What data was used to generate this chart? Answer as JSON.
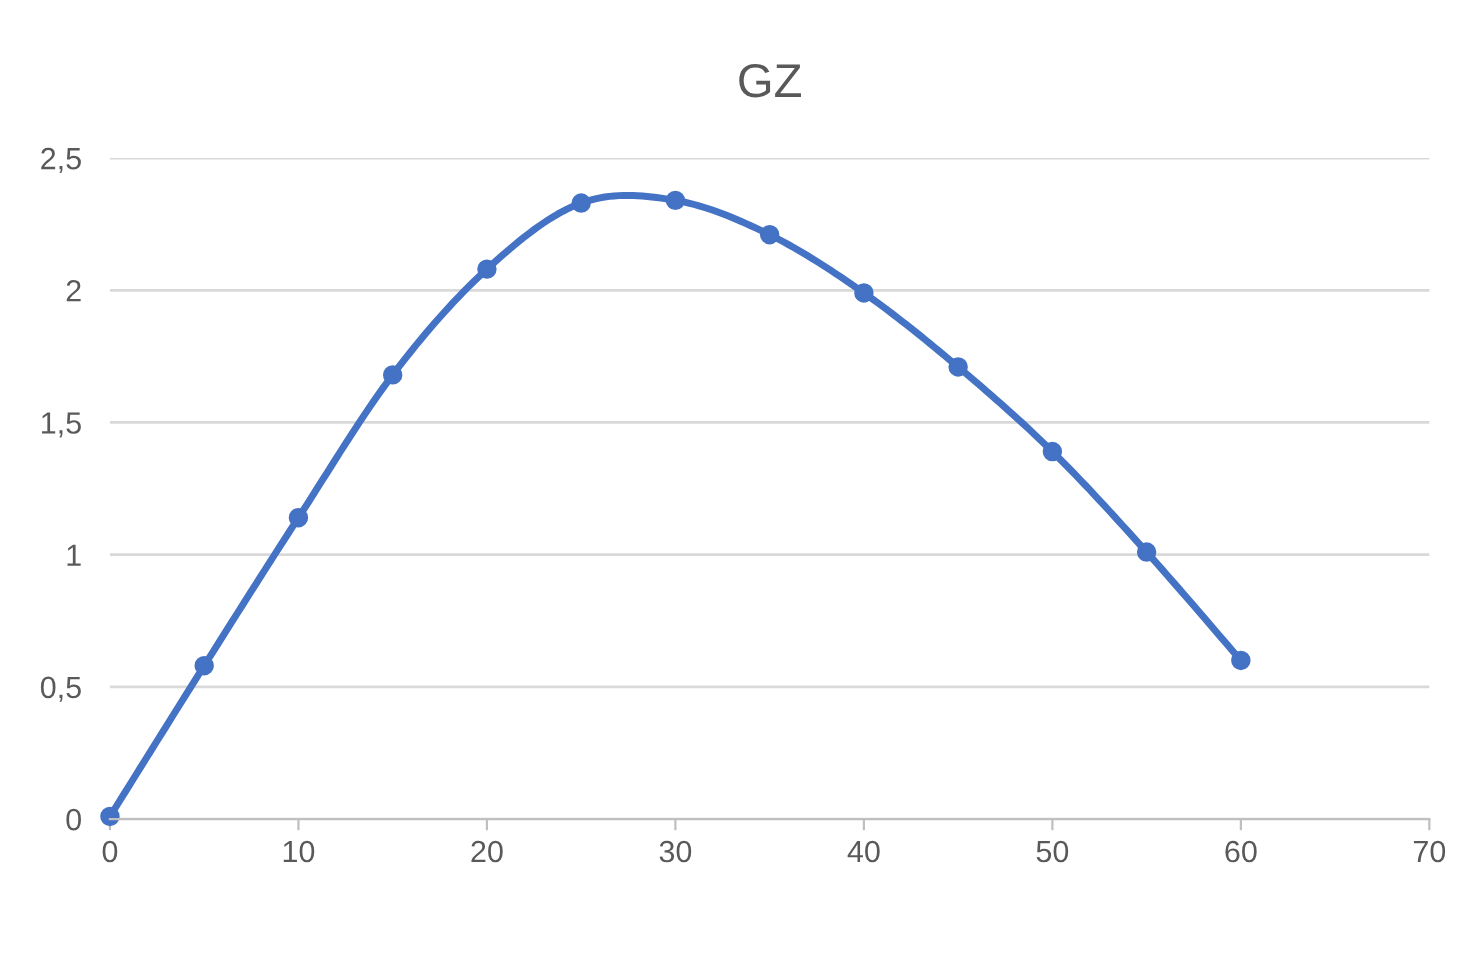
{
  "chart_data": {
    "type": "line",
    "title": "GZ",
    "x": [
      0,
      5,
      10,
      15,
      20,
      25,
      30,
      35,
      40,
      45,
      50,
      55,
      60
    ],
    "series": [
      {
        "color": "#4472c4",
        "values": [
          0.01,
          0.58,
          1.14,
          1.68,
          2.08,
          2.33,
          2.34,
          2.21,
          1.99,
          1.71,
          1.39,
          1.01,
          0.6
        ]
      }
    ],
    "xlim": [
      0,
      70
    ],
    "xticks": [
      0,
      10,
      20,
      30,
      40,
      50,
      60,
      70
    ],
    "ylim": [
      0,
      2.5
    ],
    "yticks": [
      0,
      {
        "value": 0.5,
        "label": "0,5"
      },
      1,
      {
        "value": 1.5,
        "label": "1,5"
      },
      2,
      {
        "value": 2.5,
        "label": "2,5"
      }
    ],
    "grid": "y",
    "marker": "circle",
    "line_style": "solid"
  }
}
